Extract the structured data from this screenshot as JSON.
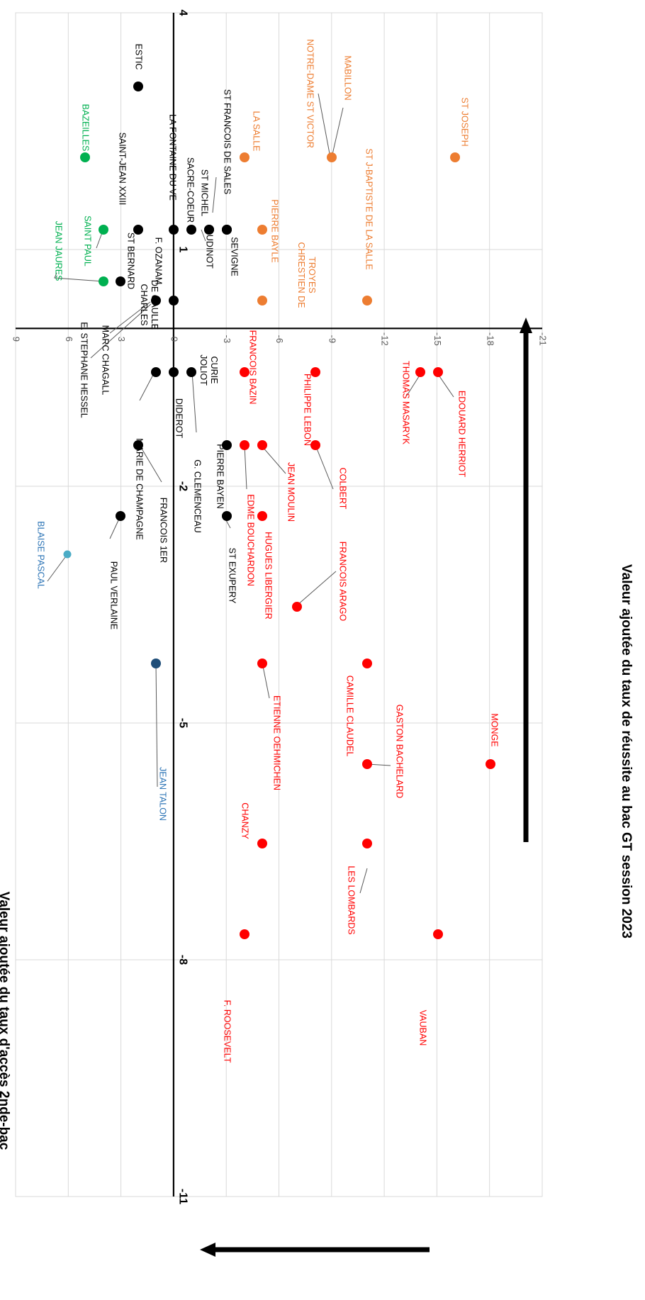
{
  "chart_data": {
    "type": "scatter",
    "orientation": "rotated 90 degrees clockwise",
    "x_axis": {
      "label": "Valeur ajoutée du taux d'accès 2nde-bac",
      "range": [
        -11,
        4
      ],
      "ticks": [
        {
          "value": -11,
          "label": "-11"
        },
        {
          "value": -8,
          "label": "-8"
        },
        {
          "value": -5,
          "label": "-5"
        },
        {
          "value": -2,
          "label": "-2"
        },
        {
          "value": 1,
          "label": "1"
        },
        {
          "value": 4,
          "label": "4"
        }
      ]
    },
    "y_axis": {
      "label": "Valeur ajoutée du taux de réussite au bac GT session 2023",
      "range": [
        -21,
        9
      ],
      "ticks": [
        {
          "value": 9,
          "label": "9"
        },
        {
          "value": 6,
          "label": "6"
        },
        {
          "value": 3,
          "label": "3"
        },
        {
          "value": 0,
          "label": "0"
        },
        {
          "value": -3,
          "label": "-3"
        },
        {
          "value": -6,
          "label": "-6"
        },
        {
          "value": -9,
          "label": "-9"
        },
        {
          "value": -12,
          "label": "-12"
        },
        {
          "value": -15,
          "label": "-15"
        },
        {
          "value": -18,
          "label": "-18"
        },
        {
          "value": -21,
          "label": "-21"
        }
      ]
    },
    "grid": true,
    "colors": {
      "black": "#000000",
      "green": "#00b050",
      "orange": "#ed7d31",
      "red": "#ff0000",
      "dark_blue": "#1f4e79",
      "light_blue": "#4bacc6",
      "blue_label": "#2e75b6"
    },
    "points": [
      {
        "name": "ESTIC",
        "x": 3,
        "y": 2,
        "color": "black"
      },
      {
        "name": "SAINT-JEAN XXIII",
        "x": 1,
        "y": 2,
        "color": "black"
      },
      {
        "name": "LA FONTAINE DU VE",
        "x": 1,
        "y": 0,
        "color": "black"
      },
      {
        "name": "SACRE-COEUR",
        "x": 1,
        "y": -1,
        "color": "black"
      },
      {
        "name": "ST MICHEL",
        "x": 1,
        "y": -2,
        "color": "black"
      },
      {
        "name": "ST FRANCOIS DE SALES",
        "x": 1,
        "y": -3,
        "color": "black"
      },
      {
        "name": "ST BERNARD",
        "x": 0,
        "y": 3,
        "color": "black"
      },
      {
        "name": "F. OZANAM",
        "x": 0,
        "y": 1,
        "color": "black"
      },
      {
        "name": "CHARLES DE GAULLE",
        "x": 0,
        "y": 0,
        "color": "black"
      },
      {
        "name": "E. STEPHANE HESSEL",
        "x": 0,
        "y": 1,
        "color": "black"
      },
      {
        "name": "MARC CHAGALL",
        "x": 0,
        "y": 1,
        "color": "black"
      },
      {
        "name": "OUDINOT",
        "x": 1,
        "y": -2,
        "color": "black"
      },
      {
        "name": "SEVIGNE",
        "x": 1,
        "y": -3,
        "color": "black"
      },
      {
        "name": "JOLIOT CURIE",
        "x": -1,
        "y": -1,
        "color": "black"
      },
      {
        "name": "DIDEROT",
        "x": -1,
        "y": 0,
        "color": "black"
      },
      {
        "name": "MARIE DE CHAMPAGNE",
        "x": -1,
        "y": 1,
        "color": "black"
      },
      {
        "name": "G. CLEMENCEAU",
        "x": -2,
        "y": -3,
        "color": "black"
      },
      {
        "name": "FRANCOIS 1ER",
        "x": -2,
        "y": 2,
        "color": "black"
      },
      {
        "name": "PIERRE BAYEN",
        "x": -2,
        "y": -3,
        "color": "black"
      },
      {
        "name": "PAUL VERLAINE",
        "x": -3,
        "y": 3,
        "color": "black"
      },
      {
        "name": "ST EXUPERY",
        "x": -3,
        "y": -3,
        "color": "black"
      },
      {
        "name": "BAZEILLES",
        "x": 2,
        "y": 5,
        "color": "green"
      },
      {
        "name": "SAINT PAUL",
        "x": 1,
        "y": 4,
        "color": "green"
      },
      {
        "name": "JEAN JAURES",
        "x": 0,
        "y": 4,
        "color": "green"
      },
      {
        "name": "LA SALLE",
        "x": 2,
        "y": -4,
        "color": "orange"
      },
      {
        "name": "NOTRE-DAME ST VICTOR",
        "x": 2,
        "y": -9,
        "color": "orange"
      },
      {
        "name": "MABILLON",
        "x": 2,
        "y": -9,
        "color": "orange"
      },
      {
        "name": "ST JOSEPH",
        "x": 2,
        "y": -16,
        "color": "orange"
      },
      {
        "name": "PIERRE BAYLE",
        "x": 1,
        "y": -5,
        "color": "orange"
      },
      {
        "name": "CHRESTIEN DE TROYES",
        "x": 0,
        "y": -5,
        "color": "orange"
      },
      {
        "name": "ST J-BAPTISTE DE LA SALLE",
        "x": 0,
        "y": -11,
        "color": "orange"
      },
      {
        "name": "FRANCOIS BAZIN",
        "x": -1,
        "y": -4,
        "color": "red"
      },
      {
        "name": "PHILIPPE LEBON",
        "x": -1,
        "y": -8,
        "color": "red"
      },
      {
        "name": "THOMAS MASARYK",
        "x": -1,
        "y": -14,
        "color": "red"
      },
      {
        "name": "EDOUARD HERRIOT",
        "x": -1,
        "y": -15,
        "color": "red"
      },
      {
        "name": "EDME BOUCHARDON",
        "x": -2,
        "y": -4,
        "color": "red"
      },
      {
        "name": "JEAN MOULIN",
        "x": -2,
        "y": -5,
        "color": "red"
      },
      {
        "name": "COLBERT",
        "x": -2,
        "y": -8,
        "color": "red"
      },
      {
        "name": "HUGUES LIBERGIER",
        "x": -3,
        "y": -5,
        "color": "red"
      },
      {
        "name": "FRANCOIS ARAGO",
        "x": -4,
        "y": -7,
        "color": "red"
      },
      {
        "name": "CAMILLE CLAUDEL",
        "x": -5,
        "y": -11,
        "color": "red"
      },
      {
        "name": "ETIENNE OEHMICHEN",
        "x": -5,
        "y": -5,
        "color": "red"
      },
      {
        "name": "GASTON BACHELARD",
        "x": -6,
        "y": -11,
        "color": "red"
      },
      {
        "name": "MONGE",
        "x": -6,
        "y": -18,
        "color": "red"
      },
      {
        "name": "CHANZY",
        "x": -7,
        "y": -5,
        "color": "red"
      },
      {
        "name": "LES LOMBARDS",
        "x": -7,
        "y": -11,
        "color": "red"
      },
      {
        "name": "F. ROOSEVELT",
        "x": -8,
        "y": -4,
        "color": "red"
      },
      {
        "name": "VAUBAN",
        "x": -8,
        "y": -15,
        "color": "red"
      },
      {
        "name": "BLAISE PASCAL",
        "x": -3,
        "y": 6,
        "color": "light_blue"
      },
      {
        "name": "JEAN TALON",
        "x": -5,
        "y": 1,
        "color": "dark_blue"
      }
    ]
  }
}
